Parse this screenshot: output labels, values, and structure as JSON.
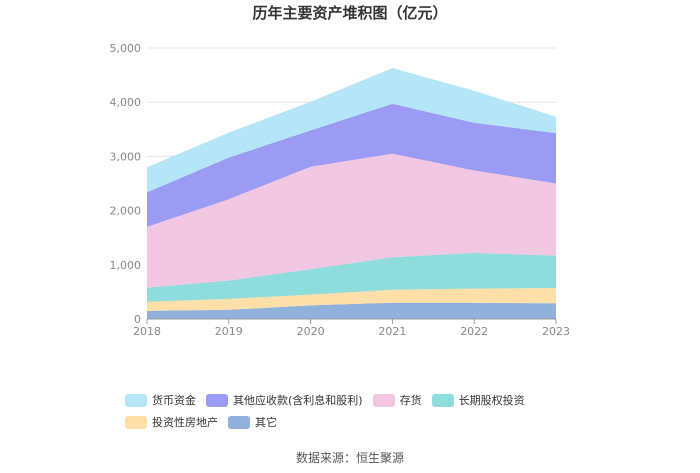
{
  "chart_data": {
    "type": "area",
    "title": "历年主要资产堆积图（亿元）",
    "categories": [
      "2018",
      "2019",
      "2020",
      "2021",
      "2022",
      "2023"
    ],
    "ylim": [
      0,
      5000
    ],
    "yticks": [
      "0",
      "1,000",
      "2,000",
      "3,000",
      "4,000",
      "5,000"
    ],
    "stacked": true,
    "grid": true,
    "legend_position": "bottom",
    "series": [
      {
        "name": "其它",
        "color": "#8FB1DC",
        "values": [
          150,
          170,
          250,
          300,
          300,
          290
        ]
      },
      {
        "name": "投资性房地产",
        "color": "#FFDFA8",
        "values": [
          170,
          200,
          200,
          240,
          260,
          280
        ]
      },
      {
        "name": "长期股权投资",
        "color": "#8FDCDC",
        "values": [
          260,
          340,
          470,
          600,
          660,
          600
        ]
      },
      {
        "name": "存货",
        "color": "#F2C7E2",
        "values": [
          1120,
          1500,
          1890,
          1910,
          1520,
          1330
        ]
      },
      {
        "name": "其他应收款(含利息和股利)",
        "color": "#9B9BF3",
        "values": [
          640,
          770,
          670,
          920,
          880,
          930
        ]
      },
      {
        "name": "货币资金",
        "color": "#B5E6F7",
        "values": [
          460,
          460,
          530,
          660,
          590,
          300
        ]
      }
    ],
    "legend_order": [
      5,
      4,
      3,
      2,
      1,
      0
    ]
  },
  "source": "数据来源：恒生聚源"
}
